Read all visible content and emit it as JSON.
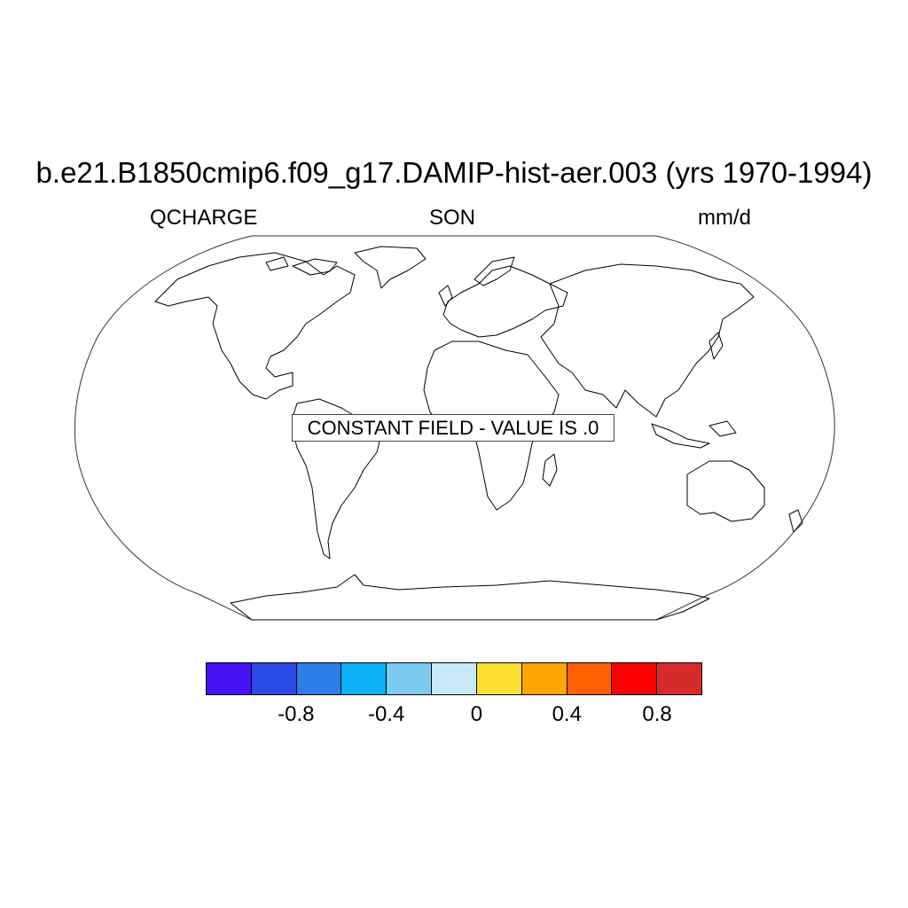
{
  "title": "b.e21.B1850cmip6.f09_g17.DAMIP-hist-aer.003 (yrs 1970-1994)",
  "left_label": "QCHARGE",
  "center_label": "SON",
  "right_label": "mm/d",
  "message": "CONSTANT FIELD - VALUE IS .0",
  "colorbar": {
    "colors": [
      "#4412f5",
      "#2c4ae6",
      "#2b7de9",
      "#0ab1f8",
      "#7bcaf0",
      "#c9e8f8",
      "#fde034",
      "#fea500",
      "#fe6000",
      "#fc0000",
      "#d62b2b"
    ],
    "tick_labels": [
      "-0.8",
      "-0.4",
      "0",
      "0.4",
      "0.8"
    ],
    "tick_values": [
      -0.8,
      -0.4,
      0,
      0.4,
      0.8
    ],
    "levels": [
      -1.0,
      -0.8,
      -0.6,
      -0.4,
      -0.2,
      0,
      0.2,
      0.4,
      0.6,
      0.8,
      1.0
    ]
  }
}
